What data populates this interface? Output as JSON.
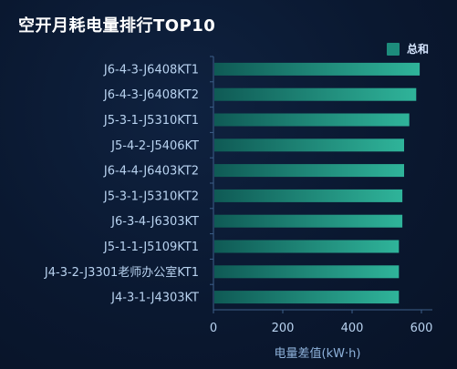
{
  "title": "空开月耗电量排行TOP10",
  "colors": {
    "bar_start": "#0f5a55",
    "bar_end": "#2fb49a",
    "axis": "#3d5f8a",
    "legend_swatch": "#1d8c7c"
  },
  "chart_data": {
    "type": "bar",
    "orientation": "horizontal",
    "title": "空开月耗电量排行TOP10",
    "xlabel": "电量差值(kW·h)",
    "ylabel": "",
    "xlim": [
      0,
      600
    ],
    "x_ticks": [
      "0",
      "200",
      "400",
      "600"
    ],
    "legend": [
      "总和"
    ],
    "legend_position": "top-right",
    "grid": false,
    "categories": [
      "J6-4-3-J6408KT1",
      "J6-4-3-J6408KT2",
      "J5-3-1-J5310KT1",
      "J5-4-2-J5406KT",
      "J6-4-4-J6403KT2",
      "J5-3-1-J5310KT2",
      "J6-3-4-J6303KT",
      "J5-1-1-J5109KT1",
      "J4-3-2-J3301老师办公室KT1",
      "J4-3-1-J4303KT"
    ],
    "series": [
      {
        "name": "总和",
        "values": [
          595,
          585,
          565,
          550,
          550,
          545,
          545,
          535,
          535,
          535
        ]
      }
    ]
  }
}
